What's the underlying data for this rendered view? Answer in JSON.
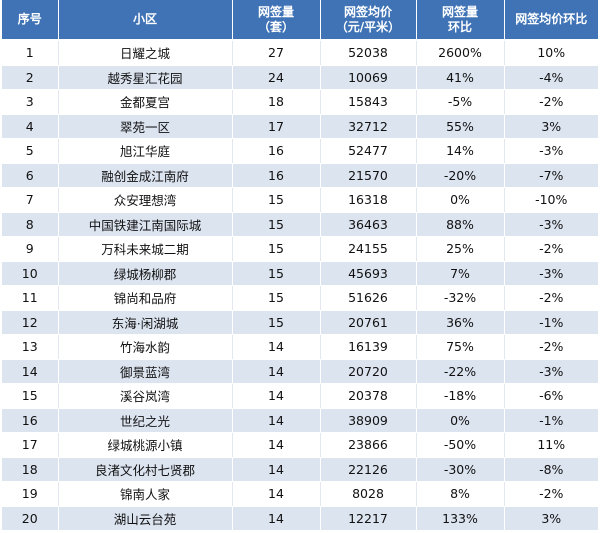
{
  "header": {
    "col_no": "序号",
    "col_name": "小区",
    "col_count_l1": "网签量",
    "col_count_l2": "（套）",
    "col_price_l1": "网签均价",
    "col_price_l2": "（元/平米）",
    "col_count_mom_l1": "网签量",
    "col_count_mom_l2": "环比",
    "col_price_mom": "网签均价环比"
  },
  "rows": [
    {
      "no": "1",
      "name": "日耀之城",
      "count": "27",
      "price": "52038",
      "count_mom": "2600%",
      "price_mom": "10%"
    },
    {
      "no": "2",
      "name": "越秀星汇花园",
      "count": "24",
      "price": "10069",
      "count_mom": "41%",
      "price_mom": "-4%"
    },
    {
      "no": "3",
      "name": "金都夏宫",
      "count": "18",
      "price": "15843",
      "count_mom": "-5%",
      "price_mom": "-2%"
    },
    {
      "no": "4",
      "name": "翠苑一区",
      "count": "17",
      "price": "32712",
      "count_mom": "55%",
      "price_mom": "3%"
    },
    {
      "no": "5",
      "name": "旭江华庭",
      "count": "16",
      "price": "52477",
      "count_mom": "14%",
      "price_mom": "-3%"
    },
    {
      "no": "6",
      "name": "融创金成江南府",
      "count": "16",
      "price": "21570",
      "count_mom": "-20%",
      "price_mom": "-7%"
    },
    {
      "no": "7",
      "name": "众安理想湾",
      "count": "15",
      "price": "16318",
      "count_mom": "0%",
      "price_mom": "-10%"
    },
    {
      "no": "8",
      "name": "中国铁建江南国际城",
      "count": "15",
      "price": "36463",
      "count_mom": "88%",
      "price_mom": "-3%"
    },
    {
      "no": "9",
      "name": "万科未来城二期",
      "count": "15",
      "price": "24155",
      "count_mom": "25%",
      "price_mom": "-2%"
    },
    {
      "no": "10",
      "name": "绿城杨柳郡",
      "count": "15",
      "price": "45693",
      "count_mom": "7%",
      "price_mom": "-3%"
    },
    {
      "no": "11",
      "name": "锦尚和品府",
      "count": "15",
      "price": "51626",
      "count_mom": "-32%",
      "price_mom": "-2%"
    },
    {
      "no": "12",
      "name": "东海·闲湖城",
      "count": "15",
      "price": "20761",
      "count_mom": "36%",
      "price_mom": "-1%"
    },
    {
      "no": "13",
      "name": "竹海水韵",
      "count": "14",
      "price": "16139",
      "count_mom": "75%",
      "price_mom": "-2%"
    },
    {
      "no": "14",
      "name": "御景蓝湾",
      "count": "14",
      "price": "20720",
      "count_mom": "-22%",
      "price_mom": "-3%"
    },
    {
      "no": "15",
      "name": "溪谷岚湾",
      "count": "14",
      "price": "20378",
      "count_mom": "-18%",
      "price_mom": "-6%"
    },
    {
      "no": "16",
      "name": "世纪之光",
      "count": "14",
      "price": "38909",
      "count_mom": "0%",
      "price_mom": "-1%"
    },
    {
      "no": "17",
      "name": "绿城桃源小镇",
      "count": "14",
      "price": "23866",
      "count_mom": "-50%",
      "price_mom": "11%"
    },
    {
      "no": "18",
      "name": "良渚文化村七贤郡",
      "count": "14",
      "price": "22126",
      "count_mom": "-30%",
      "price_mom": "-8%"
    },
    {
      "no": "19",
      "name": "锦南人家",
      "count": "14",
      "price": "8028",
      "count_mom": "8%",
      "price_mom": "-2%"
    },
    {
      "no": "20",
      "name": "湖山云台苑",
      "count": "14",
      "price": "12217",
      "count_mom": "133%",
      "price_mom": "3%"
    }
  ]
}
